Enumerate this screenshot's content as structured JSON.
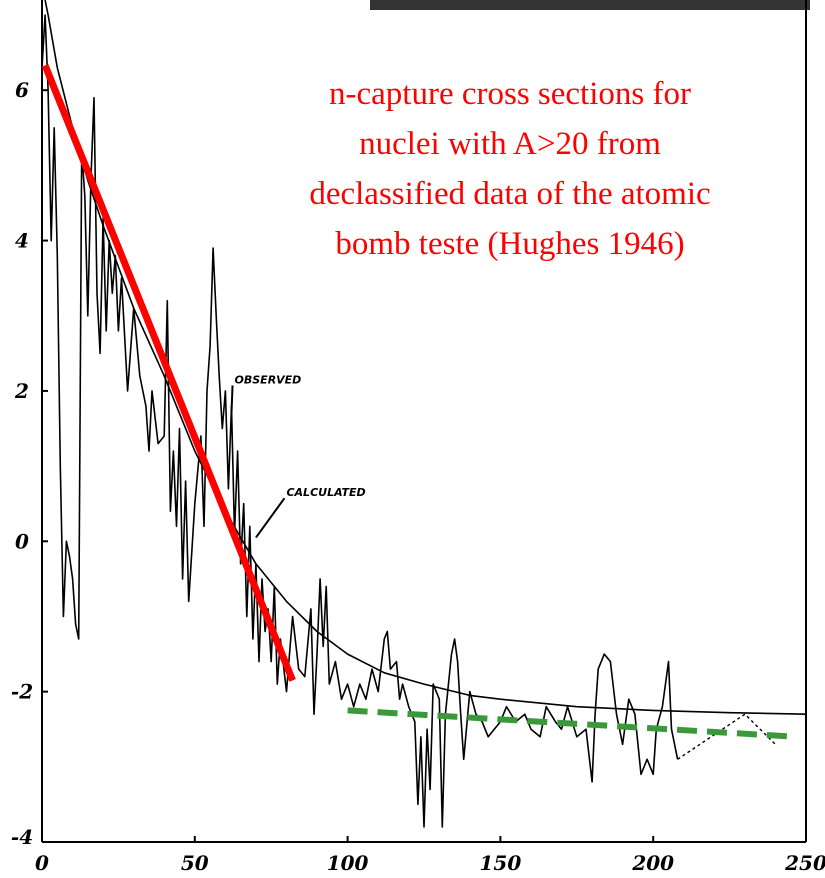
{
  "chart_data": {
    "type": "line",
    "title_lines": [
      "n-capture cross sections for",
      "nuclei with A>20 from",
      "declassified data of the atomic",
      "bomb teste (Hughes 1946)"
    ],
    "title_color": "#ff0000",
    "xlim": [
      0,
      250
    ],
    "xticks": [
      0,
      50,
      100,
      150,
      200,
      250
    ],
    "ylim": [
      -4,
      7.2
    ],
    "yticks": [
      6,
      4,
      2,
      0,
      -2,
      -4
    ],
    "series": [
      {
        "color": "#000000",
        "width": 1.6,
        "dash": "none",
        "x": [
          0,
          1,
          2,
          3,
          4,
          5,
          6,
          7,
          8,
          9,
          10,
          11,
          12,
          13,
          14,
          15,
          16,
          17,
          18,
          19,
          20,
          21,
          22,
          23,
          24,
          25,
          26,
          28,
          30,
          32,
          34,
          35,
          36,
          38,
          40,
          41,
          42,
          43,
          44,
          45,
          46,
          47,
          48,
          50,
          52,
          53,
          54,
          55,
          56,
          57,
          58,
          59,
          60,
          61,
          62,
          63,
          64,
          65,
          66,
          67,
          68,
          69,
          70,
          71,
          72,
          73,
          74,
          75,
          76,
          77,
          78,
          80,
          81,
          82,
          84,
          86,
          88,
          89,
          90,
          91,
          92,
          93,
          94,
          96,
          98,
          100,
          102,
          104,
          106,
          108,
          110,
          112,
          113,
          114,
          116,
          117,
          118,
          120,
          122,
          123,
          124,
          125,
          126,
          127,
          128,
          130,
          131,
          132,
          134,
          135,
          136,
          137,
          138,
          140,
          142,
          144,
          146,
          148,
          150,
          152,
          155,
          158,
          160,
          163,
          165,
          168,
          170,
          172,
          175,
          178,
          180,
          181,
          182,
          184,
          186,
          188,
          190,
          192,
          194,
          196,
          198,
          200,
          201,
          203,
          205,
          206,
          208
        ],
        "values": [
          6.3,
          7,
          6,
          4,
          5.5,
          3.8,
          1,
          -1,
          0,
          -0.2,
          -0.5,
          -1.1,
          -1.3,
          5.2,
          4.6,
          3,
          4.8,
          5.9,
          3.3,
          2.5,
          4.3,
          2.8,
          4,
          3.3,
          3.8,
          2.8,
          3.5,
          2,
          3.1,
          2.2,
          1.8,
          1.2,
          2,
          1.3,
          1.4,
          3.2,
          0.4,
          1.2,
          0.2,
          1.5,
          -0.5,
          0.8,
          -0.8,
          0.5,
          1.4,
          0.2,
          2,
          2.6,
          3.9,
          3,
          2.2,
          1.5,
          2,
          0.7,
          1.8,
          0.1,
          1.2,
          -0.3,
          0.5,
          -1,
          0.2,
          -1.3,
          -0.3,
          -1.6,
          -0.5,
          -1.2,
          -0.9,
          -1.6,
          -0.6,
          -1.9,
          -1.3,
          -2,
          -1.5,
          -1,
          -1.7,
          -1.8,
          -0.9,
          -2.3,
          -1.5,
          -0.5,
          -1.4,
          -0.6,
          -1.9,
          -1.6,
          -2.1,
          -1.9,
          -2.2,
          -1.9,
          -2.1,
          -1.7,
          -2,
          -1.3,
          -1.2,
          -1.7,
          -1.6,
          -2.1,
          -1.9,
          -2.2,
          -2.4,
          -3.5,
          -2.6,
          -3.8,
          -2.5,
          -3.3,
          -1.9,
          -2.1,
          -3.8,
          -2.3,
          -1.5,
          -1.3,
          -1.6,
          -2.3,
          -2.9,
          -2,
          -2.3,
          -2.4,
          -2.6,
          -2.5,
          -2.4,
          -2.2,
          -2.4,
          -2.3,
          -2.5,
          -2.6,
          -2.2,
          -2.4,
          -2.5,
          -2.2,
          -2.6,
          -2.5,
          -3.2,
          -2.3,
          -1.7,
          -1.5,
          -1.6,
          -2.3,
          -2.7,
          -2.1,
          -2.3,
          -3.1,
          -2.9,
          -3.1,
          -2.5,
          -2.2,
          -1.6,
          -2.5,
          -2.9
        ]
      },
      {
        "color": "#000000",
        "width": 1.4,
        "dash": "3 3",
        "x": [
          208,
          230,
          240
        ],
        "values": [
          -2.9,
          -2.3,
          -2.7
        ]
      },
      {
        "color": "#000000",
        "width": 1.6,
        "dash": "none",
        "x": [
          1,
          2,
          5,
          10,
          15,
          20,
          30,
          40,
          50,
          60,
          70,
          80,
          90,
          100,
          112,
          125,
          140,
          150,
          175,
          200,
          225,
          250
        ],
        "values": [
          7.2,
          7,
          6.3,
          5.5,
          4.8,
          4.2,
          3.1,
          2.2,
          1.2,
          0.4,
          -0.3,
          -0.8,
          -1.2,
          -1.5,
          -1.75,
          -1.9,
          -2.05,
          -2.1,
          -2.2,
          -2.25,
          -2.28,
          -2.3
        ]
      },
      {
        "color": "#ff0000",
        "width": 7,
        "dash": "none",
        "x": [
          1,
          82
        ],
        "values": [
          6.33,
          -1.85
        ]
      },
      {
        "color": "#3a9a3a",
        "width": 6,
        "dash": "20 10",
        "x": [
          100,
          247
        ],
        "values": [
          -2.25,
          -2.6
        ]
      }
    ],
    "annotations": [
      {
        "text": "OBSERVED",
        "x": 63,
        "y": 2.1,
        "arrow_x": 62,
        "arrow_y": 1.7
      },
      {
        "text": "CALCULATED",
        "x": 80,
        "y": 0.6,
        "arrow_x": 70,
        "arrow_y": 0.05
      }
    ]
  }
}
